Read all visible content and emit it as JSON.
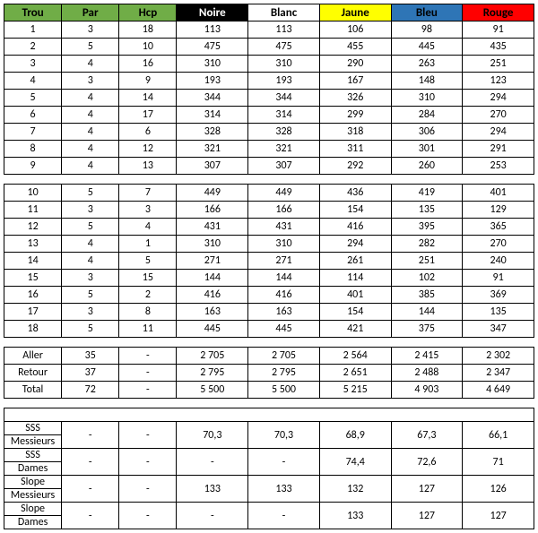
{
  "columns": {
    "trou": {
      "label": "Trou",
      "bg": "#70ad47",
      "fg": "#000000"
    },
    "par": {
      "label": "Par",
      "bg": "#70ad47",
      "fg": "#000000"
    },
    "hcp": {
      "label": "Hcp",
      "bg": "#70ad47",
      "fg": "#000000"
    },
    "noire": {
      "label": "Noire",
      "bg": "#000000",
      "fg": "#ffffff"
    },
    "blanc": {
      "label": "Blanc",
      "bg": "#ffffff",
      "fg": "#000000"
    },
    "jaune": {
      "label": "Jaune",
      "bg": "#ffff00",
      "fg": "#000000"
    },
    "bleu": {
      "label": "Bleu",
      "bg": "#2e75b6",
      "fg": "#000000"
    },
    "rouge": {
      "label": "Rouge",
      "bg": "#ff0000",
      "fg": "#000000"
    }
  },
  "front9": [
    {
      "trou": "1",
      "par": "3",
      "hcp": "18",
      "noire": "113",
      "blanc": "113",
      "jaune": "106",
      "bleu": "98",
      "rouge": "91"
    },
    {
      "trou": "2",
      "par": "5",
      "hcp": "10",
      "noire": "475",
      "blanc": "475",
      "jaune": "455",
      "bleu": "445",
      "rouge": "435"
    },
    {
      "trou": "3",
      "par": "4",
      "hcp": "16",
      "noire": "310",
      "blanc": "310",
      "jaune": "290",
      "bleu": "263",
      "rouge": "251"
    },
    {
      "trou": "4",
      "par": "3",
      "hcp": "9",
      "noire": "193",
      "blanc": "193",
      "jaune": "167",
      "bleu": "148",
      "rouge": "123"
    },
    {
      "trou": "5",
      "par": "4",
      "hcp": "14",
      "noire": "344",
      "blanc": "344",
      "jaune": "326",
      "bleu": "310",
      "rouge": "294"
    },
    {
      "trou": "6",
      "par": "4",
      "hcp": "17",
      "noire": "314",
      "blanc": "314",
      "jaune": "299",
      "bleu": "284",
      "rouge": "270"
    },
    {
      "trou": "7",
      "par": "4",
      "hcp": "6",
      "noire": "328",
      "blanc": "328",
      "jaune": "318",
      "bleu": "306",
      "rouge": "294"
    },
    {
      "trou": "8",
      "par": "4",
      "hcp": "12",
      "noire": "321",
      "blanc": "321",
      "jaune": "311",
      "bleu": "301",
      "rouge": "291"
    },
    {
      "trou": "9",
      "par": "4",
      "hcp": "13",
      "noire": "307",
      "blanc": "307",
      "jaune": "292",
      "bleu": "260",
      "rouge": "253"
    }
  ],
  "back9": [
    {
      "trou": "10",
      "par": "5",
      "hcp": "7",
      "noire": "449",
      "blanc": "449",
      "jaune": "436",
      "bleu": "419",
      "rouge": "401"
    },
    {
      "trou": "11",
      "par": "3",
      "hcp": "3",
      "noire": "166",
      "blanc": "166",
      "jaune": "154",
      "bleu": "135",
      "rouge": "129"
    },
    {
      "trou": "12",
      "par": "5",
      "hcp": "4",
      "noire": "431",
      "blanc": "431",
      "jaune": "416",
      "bleu": "395",
      "rouge": "365"
    },
    {
      "trou": "13",
      "par": "4",
      "hcp": "1",
      "noire": "310",
      "blanc": "310",
      "jaune": "294",
      "bleu": "282",
      "rouge": "270"
    },
    {
      "trou": "14",
      "par": "4",
      "hcp": "5",
      "noire": "271",
      "blanc": "271",
      "jaune": "261",
      "bleu": "251",
      "rouge": "240"
    },
    {
      "trou": "15",
      "par": "3",
      "hcp": "15",
      "noire": "144",
      "blanc": "144",
      "jaune": "114",
      "bleu": "102",
      "rouge": "91"
    },
    {
      "trou": "16",
      "par": "5",
      "hcp": "2",
      "noire": "416",
      "blanc": "416",
      "jaune": "401",
      "bleu": "385",
      "rouge": "369"
    },
    {
      "trou": "17",
      "par": "3",
      "hcp": "8",
      "noire": "163",
      "blanc": "163",
      "jaune": "154",
      "bleu": "144",
      "rouge": "135"
    },
    {
      "trou": "18",
      "par": "5",
      "hcp": "11",
      "noire": "445",
      "blanc": "445",
      "jaune": "421",
      "bleu": "375",
      "rouge": "347"
    }
  ],
  "totals": [
    {
      "label": "Aller",
      "par": "35",
      "hcp": "-",
      "noire": "2 705",
      "blanc": "2 705",
      "jaune": "2 564",
      "bleu": "2 415",
      "rouge": "2 302"
    },
    {
      "label": "Retour",
      "par": "37",
      "hcp": "-",
      "noire": "2 795",
      "blanc": "2 795",
      "jaune": "2 651",
      "bleu": "2 488",
      "rouge": "2 347"
    },
    {
      "label": "Total",
      "par": "72",
      "hcp": "-",
      "noire": "5 500",
      "blanc": "5 500",
      "jaune": "5 215",
      "bleu": "4 903",
      "rouge": "4 649"
    }
  ],
  "ratings": [
    {
      "l1": "SSS",
      "l2": "Messieurs",
      "par": "-",
      "hcp": "-",
      "noire": "70,3",
      "blanc": "70,3",
      "jaune": "68,9",
      "bleu": "67,3",
      "rouge": "66,1"
    },
    {
      "l1": "SSS",
      "l2": "Dames",
      "par": "-",
      "hcp": "-",
      "noire": "-",
      "blanc": "-",
      "jaune": "74,4",
      "bleu": "72,6",
      "rouge": "71"
    },
    {
      "l1": "Slope",
      "l2": "Messieurs",
      "par": "-",
      "hcp": "-",
      "noire": "133",
      "blanc": "133",
      "jaune": "132",
      "bleu": "127",
      "rouge": "126"
    },
    {
      "l1": "Slope",
      "l2": "Dames",
      "par": "-",
      "hcp": "-",
      "noire": "-",
      "blanc": "-",
      "jaune": "133",
      "bleu": "127",
      "rouge": "127"
    }
  ]
}
